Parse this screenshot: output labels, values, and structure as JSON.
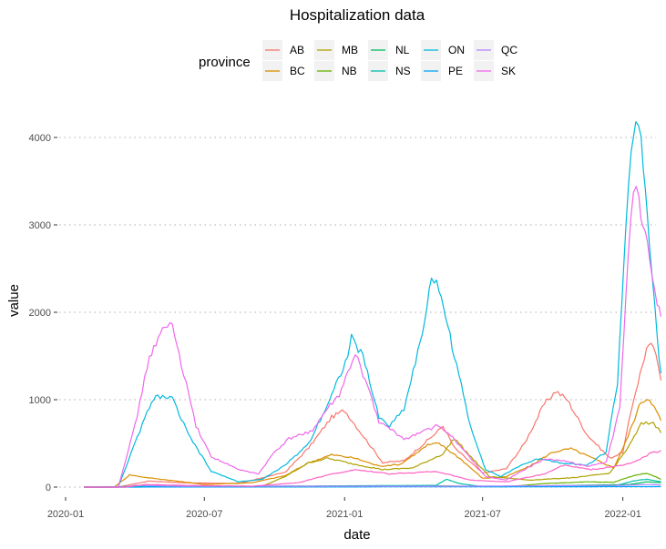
{
  "chart_data": {
    "type": "line",
    "title": "Hospitalization data",
    "xlabel": "date",
    "ylabel": "value",
    "legend_title": "province",
    "legend_position": "top",
    "grid": "horizontal dotted",
    "xlim": [
      "2020-01-01",
      "2022-03-01"
    ],
    "ylim": [
      0,
      4200
    ],
    "x_ticks": [
      {
        "date": "2020-01-01",
        "label": "2020-01"
      },
      {
        "date": "2020-07-01",
        "label": "2020-07"
      },
      {
        "date": "2021-01-01",
        "label": "2021-01"
      },
      {
        "date": "2021-07-01",
        "label": "2021-07"
      },
      {
        "date": "2022-01-01",
        "label": "2022-01"
      }
    ],
    "y_ticks": [
      0,
      1000,
      2000,
      3000,
      4000
    ],
    "series": [
      {
        "name": "AB",
        "color": "#F8766D",
        "points": [
          [
            "2020-01-25",
            0
          ],
          [
            "2020-03-10",
            0
          ],
          [
            "2020-04-20",
            70
          ],
          [
            "2020-06-01",
            50
          ],
          [
            "2020-08-15",
            40
          ],
          [
            "2020-10-15",
            170
          ],
          [
            "2020-11-15",
            450
          ],
          [
            "2020-12-15",
            800
          ],
          [
            "2021-01-01",
            880
          ],
          [
            "2021-01-20",
            650
          ],
          [
            "2021-02-20",
            280
          ],
          [
            "2021-03-20",
            300
          ],
          [
            "2021-05-01",
            620
          ],
          [
            "2021-05-10",
            700
          ],
          [
            "2021-05-25",
            450
          ],
          [
            "2021-07-01",
            160
          ],
          [
            "2021-08-01",
            210
          ],
          [
            "2021-08-25",
            500
          ],
          [
            "2021-09-20",
            950
          ],
          [
            "2021-10-05",
            1100
          ],
          [
            "2021-10-20",
            1000
          ],
          [
            "2021-11-15",
            600
          ],
          [
            "2021-12-15",
            330
          ],
          [
            "2022-01-01",
            400
          ],
          [
            "2022-01-15",
            1000
          ],
          [
            "2022-02-01",
            1580
          ],
          [
            "2022-02-10",
            1620
          ],
          [
            "2022-02-20",
            1220
          ]
        ]
      },
      {
        "name": "BC",
        "color": "#DB8E00",
        "points": [
          [
            "2020-01-25",
            0
          ],
          [
            "2020-03-05",
            0
          ],
          [
            "2020-03-25",
            140
          ],
          [
            "2020-04-15",
            110
          ],
          [
            "2020-05-15",
            80
          ],
          [
            "2020-07-01",
            30
          ],
          [
            "2020-09-01",
            50
          ],
          [
            "2020-10-15",
            130
          ],
          [
            "2020-11-15",
            280
          ],
          [
            "2020-12-15",
            370
          ],
          [
            "2021-01-15",
            330
          ],
          [
            "2021-02-15",
            240
          ],
          [
            "2021-03-15",
            260
          ],
          [
            "2021-04-20",
            480
          ],
          [
            "2021-05-05",
            500
          ],
          [
            "2021-06-01",
            330
          ],
          [
            "2021-07-01",
            100
          ],
          [
            "2021-08-01",
            120
          ],
          [
            "2021-09-01",
            240
          ],
          [
            "2021-10-01",
            400
          ],
          [
            "2021-10-25",
            440
          ],
          [
            "2021-11-20",
            340
          ],
          [
            "2021-12-20",
            220
          ],
          [
            "2022-01-05",
            520
          ],
          [
            "2022-01-25",
            980
          ],
          [
            "2022-02-05",
            1020
          ],
          [
            "2022-02-20",
            760
          ]
        ]
      },
      {
        "name": "MB",
        "color": "#AEA200",
        "points": [
          [
            "2020-01-25",
            0
          ],
          [
            "2020-09-15",
            10
          ],
          [
            "2020-10-15",
            120
          ],
          [
            "2020-11-15",
            280
          ],
          [
            "2020-12-10",
            330
          ],
          [
            "2021-01-15",
            260
          ],
          [
            "2021-02-20",
            200
          ],
          [
            "2021-04-01",
            220
          ],
          [
            "2021-05-10",
            380
          ],
          [
            "2021-05-25",
            560
          ],
          [
            "2021-06-10",
            400
          ],
          [
            "2021-07-10",
            120
          ],
          [
            "2021-09-01",
            80
          ],
          [
            "2021-11-01",
            110
          ],
          [
            "2021-12-15",
            160
          ],
          [
            "2022-01-10",
            480
          ],
          [
            "2022-01-25",
            720
          ],
          [
            "2022-02-10",
            740
          ],
          [
            "2022-02-20",
            620
          ]
        ]
      },
      {
        "name": "NB",
        "color": "#64B200",
        "points": [
          [
            "2020-01-25",
            0
          ],
          [
            "2020-12-01",
            5
          ],
          [
            "2021-04-01",
            15
          ],
          [
            "2021-06-01",
            10
          ],
          [
            "2021-08-01",
            5
          ],
          [
            "2021-09-20",
            40
          ],
          [
            "2021-11-15",
            60
          ],
          [
            "2021-12-20",
            55
          ],
          [
            "2022-01-15",
            130
          ],
          [
            "2022-02-01",
            160
          ],
          [
            "2022-02-20",
            90
          ]
        ]
      },
      {
        "name": "NL",
        "color": "#00BD5C",
        "points": [
          [
            "2020-01-25",
            0
          ],
          [
            "2021-02-15",
            5
          ],
          [
            "2021-03-15",
            15
          ],
          [
            "2021-08-01",
            5
          ],
          [
            "2022-01-10",
            30
          ],
          [
            "2022-02-01",
            60
          ],
          [
            "2022-02-20",
            50
          ]
        ]
      },
      {
        "name": "NS",
        "color": "#00C1A7",
        "points": [
          [
            "2020-01-25",
            0
          ],
          [
            "2020-04-20",
            10
          ],
          [
            "2020-06-01",
            5
          ],
          [
            "2021-05-01",
            20
          ],
          [
            "2021-05-15",
            90
          ],
          [
            "2021-06-01",
            40
          ],
          [
            "2021-07-01",
            5
          ],
          [
            "2021-12-20",
            10
          ],
          [
            "2022-01-15",
            70
          ],
          [
            "2022-02-01",
            90
          ],
          [
            "2022-02-20",
            60
          ]
        ]
      },
      {
        "name": "ON",
        "color": "#00BADE",
        "points": [
          [
            "2020-01-25",
            0
          ],
          [
            "2020-03-10",
            0
          ],
          [
            "2020-04-01",
            500
          ],
          [
            "2020-04-20",
            920
          ],
          [
            "2020-05-01",
            1050
          ],
          [
            "2020-05-20",
            1010
          ],
          [
            "2020-06-10",
            600
          ],
          [
            "2020-07-10",
            180
          ],
          [
            "2020-08-15",
            60
          ],
          [
            "2020-09-15",
            90
          ],
          [
            "2020-10-15",
            250
          ],
          [
            "2020-11-15",
            500
          ],
          [
            "2020-12-15",
            1050
          ],
          [
            "2021-01-05",
            1500
          ],
          [
            "2021-01-10",
            1700
          ],
          [
            "2021-01-25",
            1500
          ],
          [
            "2021-02-15",
            800
          ],
          [
            "2021-03-01",
            700
          ],
          [
            "2021-03-20",
            900
          ],
          [
            "2021-04-10",
            1650
          ],
          [
            "2021-04-25",
            2350
          ],
          [
            "2021-05-05",
            2300
          ],
          [
            "2021-05-25",
            1500
          ],
          [
            "2021-06-15",
            700
          ],
          [
            "2021-07-05",
            200
          ],
          [
            "2021-07-25",
            120
          ],
          [
            "2021-08-20",
            250
          ],
          [
            "2021-09-15",
            330
          ],
          [
            "2021-10-10",
            280
          ],
          [
            "2021-11-15",
            250
          ],
          [
            "2021-12-10",
            400
          ],
          [
            "2021-12-25",
            1200
          ],
          [
            "2022-01-05",
            3000
          ],
          [
            "2022-01-12",
            3900
          ],
          [
            "2022-01-18",
            4180
          ],
          [
            "2022-01-25",
            3900
          ],
          [
            "2022-02-05",
            2800
          ],
          [
            "2022-02-15",
            1700
          ],
          [
            "2022-02-20",
            1300
          ]
        ]
      },
      {
        "name": "PE",
        "color": "#00A6FF",
        "points": [
          [
            "2020-01-25",
            0
          ],
          [
            "2022-01-15",
            5
          ],
          [
            "2022-02-20",
            5
          ]
        ]
      },
      {
        "name": "QC",
        "color": "#B385FF",
        "points": [
          [
            "2020-01-25",
            0
          ],
          [
            "2020-03-20",
            0
          ],
          [
            "2020-04-01",
            20
          ],
          [
            "2020-06-01",
            10
          ],
          [
            "2021-01-01",
            10
          ],
          [
            "2021-06-01",
            10
          ],
          [
            "2021-09-01",
            15
          ],
          [
            "2022-01-01",
            20
          ],
          [
            "2022-02-01",
            30
          ],
          [
            "2022-02-20",
            25
          ]
        ]
      },
      {
        "name": "SK",
        "color": "#EF67EB",
        "points": [
          [
            "2020-01-25",
            0
          ],
          [
            "2020-03-10",
            0
          ],
          [
            "2020-04-01",
            700
          ],
          [
            "2020-04-20",
            1500
          ],
          [
            "2020-05-10",
            1830
          ],
          [
            "2020-05-20",
            1850
          ],
          [
            "2020-06-01",
            1400
          ],
          [
            "2020-06-20",
            700
          ],
          [
            "2020-07-10",
            350
          ],
          [
            "2020-08-15",
            200
          ],
          [
            "2020-09-10",
            150
          ],
          [
            "2020-10-01",
            400
          ],
          [
            "2020-10-20",
            550
          ],
          [
            "2020-11-20",
            650
          ],
          [
            "2020-12-10",
            900
          ],
          [
            "2020-12-25",
            1050
          ],
          [
            "2021-01-05",
            1300
          ],
          [
            "2021-01-15",
            1520
          ],
          [
            "2021-01-25",
            1300
          ],
          [
            "2021-02-15",
            750
          ],
          [
            "2021-03-20",
            550
          ],
          [
            "2021-04-15",
            640
          ],
          [
            "2021-05-01",
            700
          ],
          [
            "2021-05-20",
            600
          ],
          [
            "2021-06-15",
            330
          ],
          [
            "2021-07-05",
            120
          ],
          [
            "2021-08-01",
            80
          ],
          [
            "2021-08-25",
            200
          ],
          [
            "2021-09-20",
            320
          ],
          [
            "2021-10-15",
            300
          ],
          [
            "2021-11-15",
            240
          ],
          [
            "2021-12-10",
            280
          ],
          [
            "2021-12-28",
            900
          ],
          [
            "2022-01-08",
            2700
          ],
          [
            "2022-01-15",
            3420
          ],
          [
            "2022-01-22",
            3300
          ],
          [
            "2022-02-05",
            2600
          ],
          [
            "2022-02-15",
            2100
          ],
          [
            "2022-02-20",
            1950
          ]
        ]
      }
    ],
    "overlay_series": [
      {
        "name": "SK",
        "color": "#FF61C3",
        "points": [
          [
            "2020-01-25",
            0
          ],
          [
            "2020-03-20",
            0
          ],
          [
            "2020-04-15",
            30
          ],
          [
            "2020-06-01",
            20
          ],
          [
            "2020-09-01",
            10
          ],
          [
            "2020-11-01",
            50
          ],
          [
            "2020-12-15",
            150
          ],
          [
            "2021-01-15",
            200
          ],
          [
            "2021-03-01",
            150
          ],
          [
            "2021-05-01",
            180
          ],
          [
            "2021-06-15",
            80
          ],
          [
            "2021-08-01",
            60
          ],
          [
            "2021-09-20",
            150
          ],
          [
            "2021-10-15",
            250
          ],
          [
            "2021-11-20",
            200
          ],
          [
            "2022-01-01",
            250
          ],
          [
            "2022-01-20",
            300
          ],
          [
            "2022-02-05",
            380
          ],
          [
            "2022-02-20",
            420
          ]
        ]
      }
    ]
  }
}
